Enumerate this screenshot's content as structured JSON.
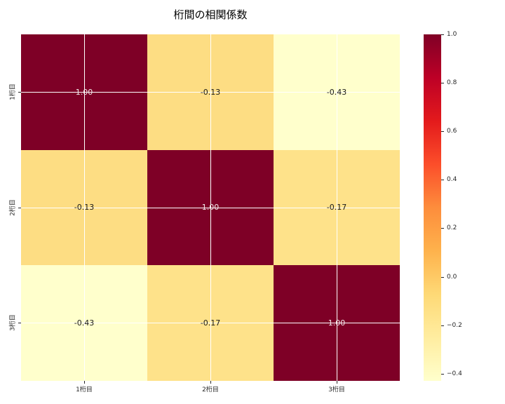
{
  "title": "桁間の相関係数",
  "chart_data": {
    "type": "heatmap",
    "title": "桁間の相関係数",
    "categories": [
      "1桁目",
      "2桁目",
      "3桁目"
    ],
    "x_tick_labels": [
      "1桁目",
      "2桁目",
      "3桁目"
    ],
    "y_tick_labels": [
      "1桁目",
      "2桁目",
      "3桁目"
    ],
    "matrix": [
      [
        1.0,
        -0.13,
        -0.43
      ],
      [
        -0.13,
        1.0,
        -0.17
      ],
      [
        -0.43,
        -0.17,
        1.0
      ]
    ],
    "cell_labels": [
      [
        "1.00",
        "-0.13",
        "-0.43"
      ],
      [
        "-0.13",
        "1.00",
        "-0.17"
      ],
      [
        "-0.43",
        "-0.17",
        "1.00"
      ]
    ],
    "cell_colors": [
      [
        "#7E0026",
        "#FDDD83",
        "#FFFFCC"
      ],
      [
        "#FDDD83",
        "#7E0026",
        "#FEE28A"
      ],
      [
        "#FFFFCC",
        "#FEE28A",
        "#7E0026"
      ]
    ],
    "cell_text_colors": [
      [
        "#F2EAEA",
        "#1A1A1A",
        "#1A1A1A"
      ],
      [
        "#1A1A1A",
        "#F2EAEA",
        "#1A1A1A"
      ],
      [
        "#1A1A1A",
        "#1A1A1A",
        "#F2EAEA"
      ]
    ],
    "vmin": -0.43,
    "vmax": 1.0,
    "grid": true,
    "colormap": {
      "name": "YlOrRd",
      "stops_top_to_bottom": [
        "#800026",
        "#BD0026",
        "#E31A1C",
        "#FC4E2A",
        "#FD8D3C",
        "#FEB24C",
        "#FED976",
        "#FFEDA0",
        "#FFFFCC"
      ]
    },
    "colorbar": {
      "position": "right",
      "tick_labels": [
        "1.0",
        "0.8",
        "0.6",
        "0.4",
        "0.2",
        "0.0",
        "−0.2",
        "−0.4"
      ],
      "tick_values": [
        1.0,
        0.8,
        0.6,
        0.4,
        0.2,
        0.0,
        -0.2,
        -0.4
      ]
    }
  }
}
